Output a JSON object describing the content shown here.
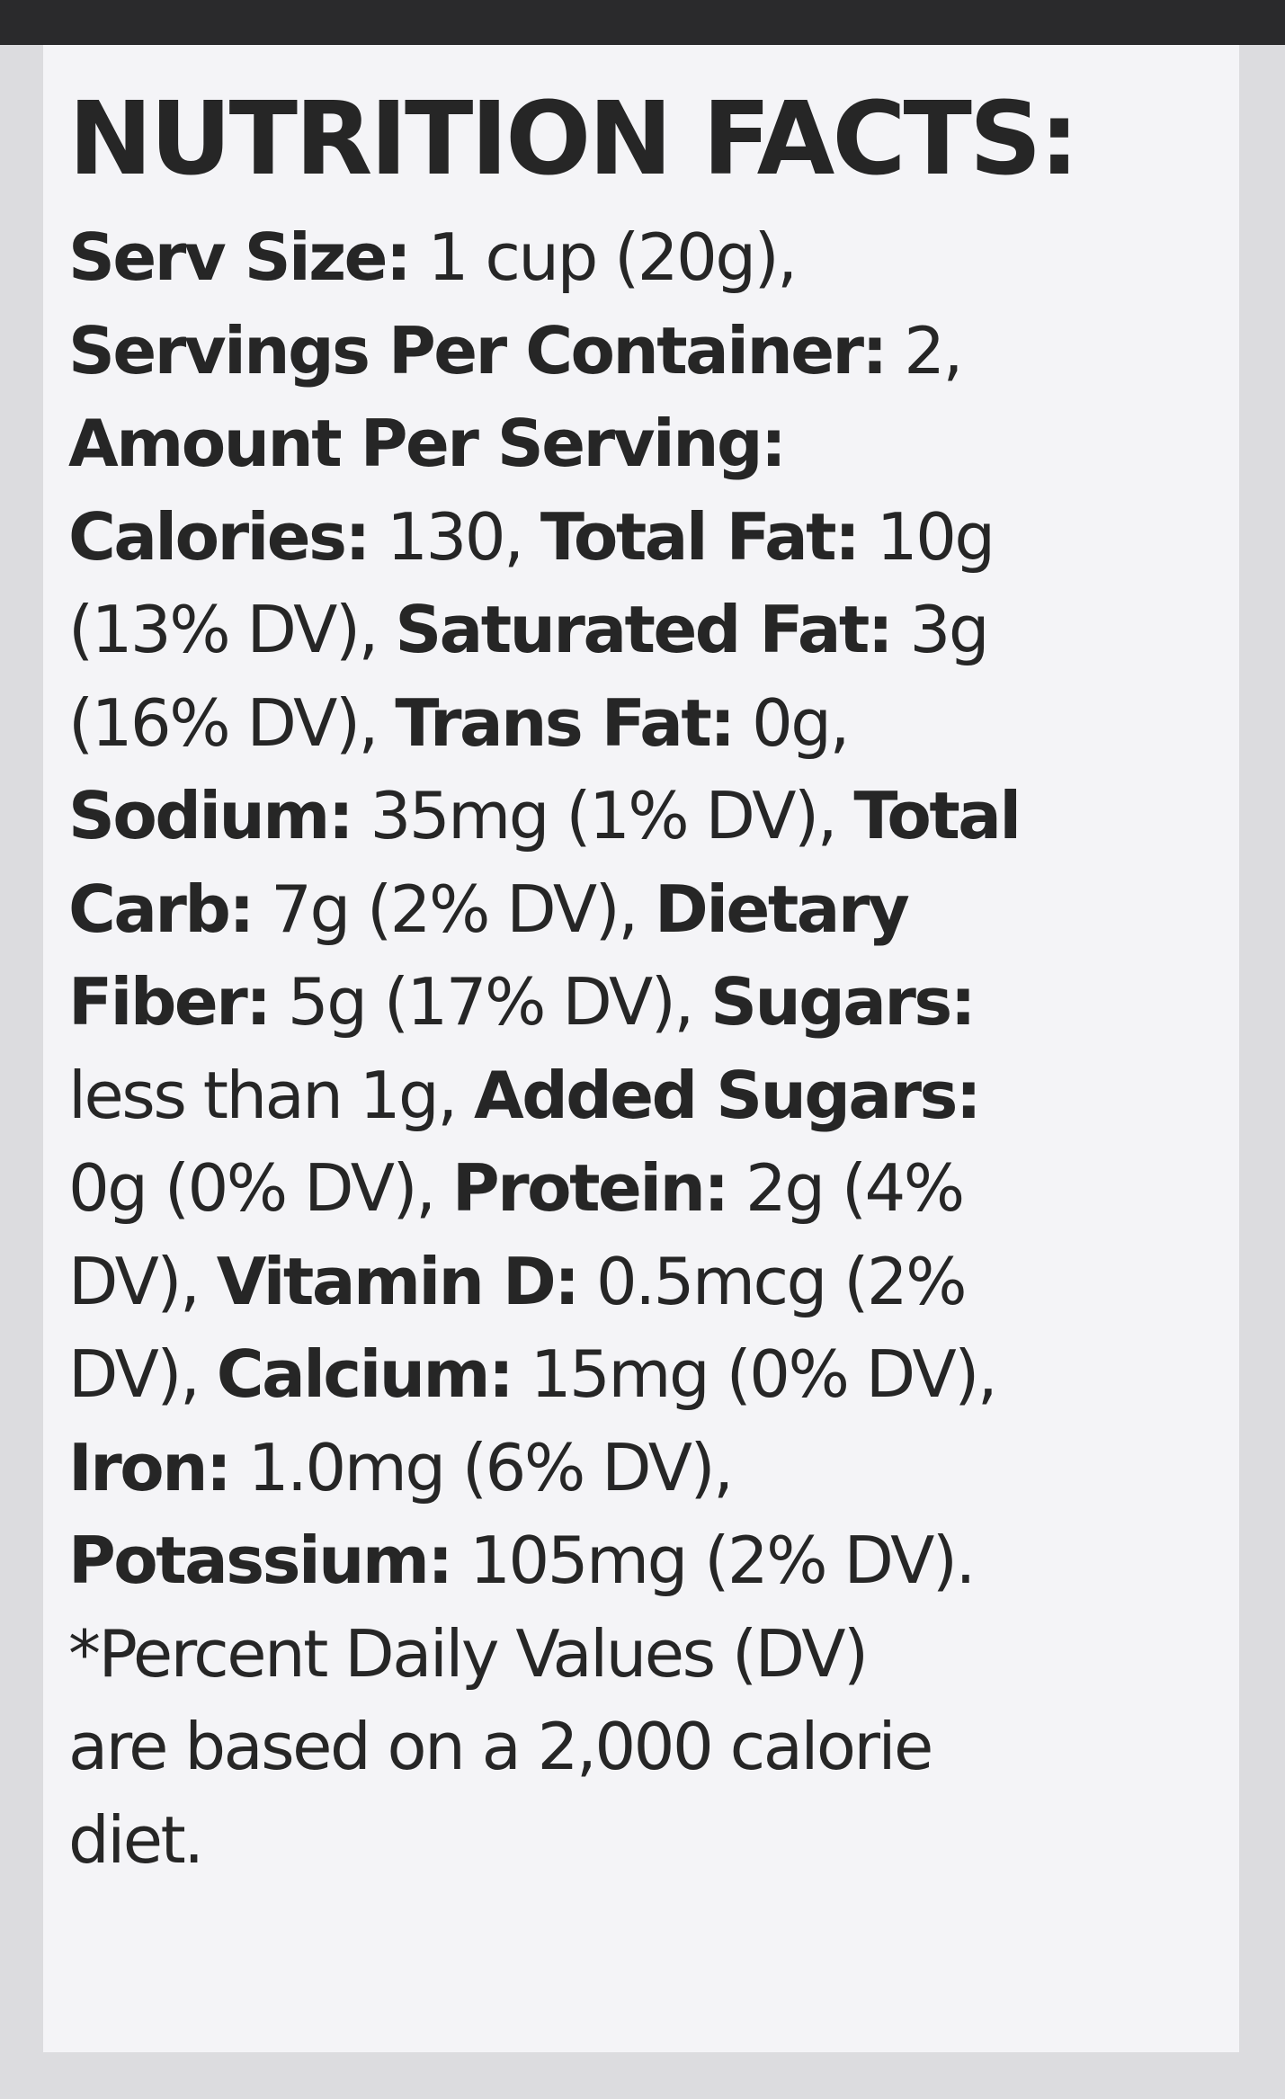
{
  "title": "NUTRITION FACTS:",
  "lines": [
    [
      {
        "text": "Serv Size:",
        "bold": true
      },
      {
        "text": " 1 cup (20g),",
        "bold": false
      }
    ],
    [
      {
        "text": "Servings Per Container:",
        "bold": true
      },
      {
        "text": " 2,",
        "bold": false
      }
    ],
    [
      {
        "text": "Amount Per Serving:",
        "bold": true
      }
    ],
    [
      {
        "text": "Calories:",
        "bold": true
      },
      {
        "text": " 130, ",
        "bold": false
      },
      {
        "text": "Total Fat:",
        "bold": true
      },
      {
        "text": " 10g",
        "bold": false
      }
    ],
    [
      {
        "text": "(13% DV), ",
        "bold": false
      },
      {
        "text": "Saturated Fat:",
        "bold": true
      },
      {
        "text": " 3g",
        "bold": false
      }
    ],
    [
      {
        "text": "(16% DV), ",
        "bold": false
      },
      {
        "text": "Trans Fat:",
        "bold": true
      },
      {
        "text": " 0g,",
        "bold": false
      }
    ],
    [
      {
        "text": "Sodium:",
        "bold": true
      },
      {
        "text": " 35mg (1% DV), ",
        "bold": false
      },
      {
        "text": "Total",
        "bold": true
      }
    ],
    [
      {
        "text": "Carb:",
        "bold": true
      },
      {
        "text": " 7g (2% DV), ",
        "bold": false
      },
      {
        "text": "Dietary",
        "bold": true
      }
    ],
    [
      {
        "text": "Fiber:",
        "bold": true
      },
      {
        "text": " 5g (17% DV), ",
        "bold": false
      },
      {
        "text": "Sugars:",
        "bold": true
      }
    ],
    [
      {
        "text": "less than 1g, ",
        "bold": false
      },
      {
        "text": "Added Sugars:",
        "bold": true
      }
    ],
    [
      {
        "text": "0g (0% DV), ",
        "bold": false
      },
      {
        "text": "Protein:",
        "bold": true
      },
      {
        "text": " 2g (4%",
        "bold": false
      }
    ],
    [
      {
        "text": "DV), ",
        "bold": false
      },
      {
        "text": "Vitamin D:",
        "bold": true
      },
      {
        "text": " 0.5mcg (2%",
        "bold": false
      }
    ],
    [
      {
        "text": "DV), ",
        "bold": false
      },
      {
        "text": "Calcium:",
        "bold": true
      },
      {
        "text": " 15mg (0% DV),",
        "bold": false
      }
    ],
    [
      {
        "text": "Iron:",
        "bold": true
      },
      {
        "text": " 1.0mg (6% DV),",
        "bold": false
      }
    ],
    [
      {
        "text": "Potassium:",
        "bold": true
      },
      {
        "text": " 105mg (2% DV).",
        "bold": false
      }
    ],
    [
      {
        "text": "*Percent Daily Values (DV)",
        "bold": false
      }
    ],
    [
      {
        "text": "are based on a 2,000 calorie",
        "bold": false
      }
    ],
    [
      {
        "text": "diet.",
        "bold": false
      }
    ]
  ]
}
